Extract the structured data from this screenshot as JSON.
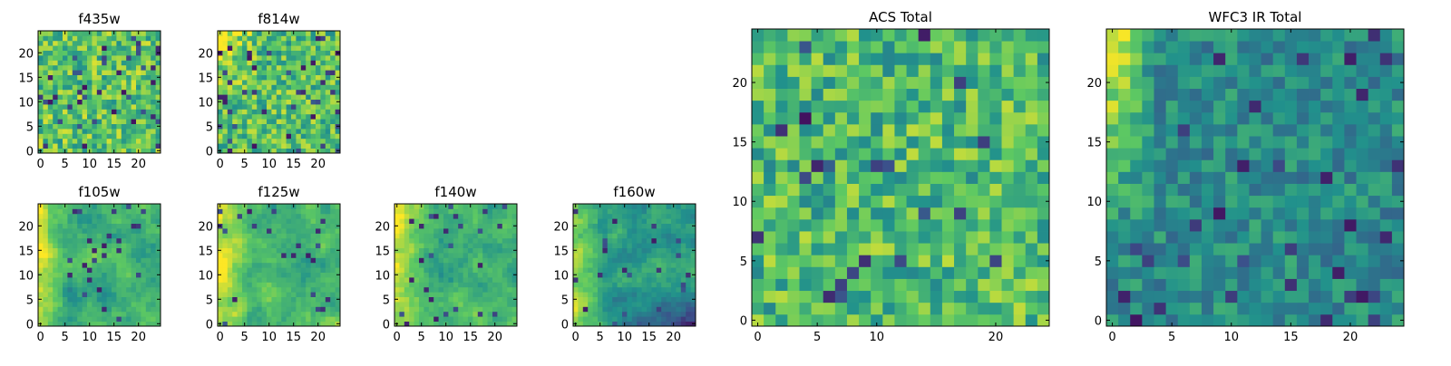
{
  "colormap": "viridis",
  "colormap_stops": [
    "#440154",
    "#3b528b",
    "#21918c",
    "#5ec962",
    "#fde725"
  ],
  "chart_data": [
    {
      "type": "heatmap",
      "title": "f435w",
      "size": 25,
      "xticks": [
        0,
        5,
        10,
        15,
        20
      ],
      "yticks": [
        0,
        5,
        10,
        15,
        20
      ],
      "xlim": [
        0,
        25
      ],
      "ylim": [
        0,
        25
      ],
      "grid": false,
      "pattern": "uniform_noise",
      "mean_level": 0.72
    },
    {
      "type": "heatmap",
      "title": "f814w",
      "size": 25,
      "xticks": [
        0,
        5,
        10,
        15,
        20
      ],
      "yticks": [
        0,
        5,
        10,
        15,
        20
      ],
      "xlim": [
        0,
        25
      ],
      "ylim": [
        0,
        25
      ],
      "grid": false,
      "pattern": "noise_bright_upper_left",
      "mean_level": 0.7
    },
    {
      "type": "heatmap",
      "title": "f105w",
      "size": 25,
      "xticks": [
        0,
        5,
        10,
        15,
        20
      ],
      "yticks": [
        0,
        5,
        10,
        15,
        20
      ],
      "xlim": [
        0,
        25
      ],
      "ylim": [
        0,
        25
      ],
      "grid": false,
      "pattern": "smooth_bright_left",
      "mean_level": 0.62
    },
    {
      "type": "heatmap",
      "title": "f125w",
      "size": 25,
      "xticks": [
        0,
        5,
        10,
        15,
        20
      ],
      "yticks": [
        0,
        5,
        10,
        15,
        20
      ],
      "xlim": [
        0,
        25
      ],
      "ylim": [
        0,
        25
      ],
      "grid": false,
      "pattern": "smooth_bright_left",
      "mean_level": 0.65
    },
    {
      "type": "heatmap",
      "title": "f140w",
      "size": 25,
      "xticks": [
        0,
        5,
        10,
        15,
        20
      ],
      "yticks": [
        0,
        5,
        10,
        15,
        20
      ],
      "xlim": [
        0,
        25
      ],
      "ylim": [
        0,
        25
      ],
      "grid": false,
      "pattern": "smooth_bright_left",
      "mean_level": 0.64
    },
    {
      "type": "heatmap",
      "title": "f160w",
      "size": 25,
      "xticks": [
        0,
        5,
        10,
        15,
        20
      ],
      "yticks": [
        0,
        5,
        10,
        15,
        20
      ],
      "xlim": [
        0,
        25
      ],
      "ylim": [
        0,
        25
      ],
      "grid": false,
      "pattern": "smooth_bright_left_dark_lower",
      "mean_level": 0.55
    },
    {
      "type": "heatmap",
      "title": "ACS Total",
      "size": 25,
      "xticks": [
        0,
        5,
        10,
        20
      ],
      "yticks": [
        0,
        5,
        10,
        15,
        20
      ],
      "xlim": [
        0,
        25
      ],
      "ylim": [
        0,
        25
      ],
      "grid": false,
      "pattern": "uniform_noise",
      "mean_level": 0.68
    },
    {
      "type": "heatmap",
      "title": "WFC3 IR Total",
      "size": 25,
      "xticks": [
        0,
        5,
        10,
        15,
        20
      ],
      "yticks": [
        0,
        5,
        10,
        15,
        20
      ],
      "xlim": [
        0,
        25
      ],
      "ylim": [
        0,
        25
      ],
      "grid": false,
      "pattern": "bright_left_edge",
      "mean_level": 0.48
    }
  ]
}
